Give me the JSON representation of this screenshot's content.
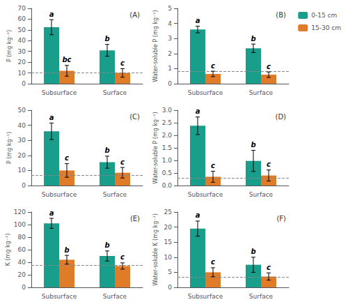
{
  "chart_data": [
    {
      "type": "bar",
      "title": "(A)",
      "ylabel": "P (mg kg⁻¹)",
      "categories": [
        "Subsurface",
        "Surface"
      ],
      "series": [
        {
          "name": "0-15 cm",
          "color": "#1a9e8c",
          "values": [
            52.5,
            31.0
          ],
          "errors": [
            7.0,
            5.5
          ],
          "annotations": [
            "a",
            "b"
          ]
        },
        {
          "name": "15-30 cm",
          "color": "#e07b2a",
          "values": [
            12.0,
            10.0
          ],
          "errors": [
            5.0,
            4.0
          ],
          "annotations": [
            "bc",
            "c"
          ]
        }
      ],
      "reference_line": 10,
      "ylim": [
        0,
        70
      ],
      "yticks": [
        0,
        10,
        20,
        30,
        40,
        50,
        60,
        70
      ],
      "grid": false
    },
    {
      "type": "bar",
      "title": "(B)",
      "ylabel": "Water-soluble P (mg kg⁻¹)",
      "categories": [
        "Subsurface",
        "Surface"
      ],
      "series": [
        {
          "name": "0-15 cm",
          "color": "#1a9e8c",
          "values": [
            3.6,
            2.35
          ],
          "errors": [
            0.22,
            0.28
          ],
          "annotations": [
            "a",
            "b"
          ]
        },
        {
          "name": "15-30 cm",
          "color": "#e07b2a",
          "values": [
            0.65,
            0.6
          ],
          "errors": [
            0.18,
            0.18
          ],
          "annotations": [
            "c",
            "c"
          ]
        }
      ],
      "reference_line": 0.8,
      "ylim": [
        0,
        5
      ],
      "yticks": [
        0,
        1,
        2,
        3,
        4,
        5
      ],
      "grid": false,
      "legend": "upper right"
    },
    {
      "type": "bar",
      "title": "(C)",
      "ylabel": "P (mg kg⁻¹)",
      "categories": [
        "Subsurface",
        "Surface"
      ],
      "series": [
        {
          "name": "0-15 cm",
          "color": "#1a9e8c",
          "values": [
            36.0,
            15.5
          ],
          "errors": [
            5.5,
            4.0
          ],
          "annotations": [
            "a",
            "b"
          ]
        },
        {
          "name": "15-30 cm",
          "color": "#e07b2a",
          "values": [
            10.0,
            8.5
          ],
          "errors": [
            4.5,
            3.5
          ],
          "annotations": [
            "c",
            "c"
          ]
        }
      ],
      "reference_line": 7,
      "ylim": [
        0,
        50
      ],
      "yticks": [
        0,
        10,
        20,
        30,
        40,
        50
      ],
      "grid": false
    },
    {
      "type": "bar",
      "title": "(D)",
      "ylabel": "Water-soluble P (mg kg⁻¹)",
      "categories": [
        "Subsurface",
        "Surface"
      ],
      "series": [
        {
          "name": "0-15 cm",
          "color": "#1a9e8c",
          "values": [
            2.38,
            0.98
          ],
          "errors": [
            0.35,
            0.42
          ],
          "annotations": [
            "a",
            "b"
          ]
        },
        {
          "name": "15-30 cm",
          "color": "#e07b2a",
          "values": [
            0.35,
            0.4
          ],
          "errors": [
            0.22,
            0.22
          ],
          "annotations": [
            "c",
            "c"
          ]
        }
      ],
      "reference_line": 0.3,
      "ylim": [
        0,
        3
      ],
      "yticks": [
        {
          "value": 0,
          "label": "0.0"
        },
        0.5,
        {
          "value": 1,
          "label": "1.0"
        },
        1.5,
        {
          "value": 2,
          "label": "2.0"
        },
        2.5,
        {
          "value": 3,
          "label": "3.0"
        }
      ],
      "grid": false
    },
    {
      "type": "bar",
      "title": "(E)",
      "ylabel": "K (mg kg⁻¹)",
      "categories": [
        "Subsurface",
        "Surface"
      ],
      "series": [
        {
          "name": "0-15 cm",
          "color": "#1a9e8c",
          "values": [
            102.0,
            50.0
          ],
          "errors": [
            8.0,
            8.0
          ],
          "annotations": [
            "a",
            "b"
          ]
        },
        {
          "name": "15-30 cm",
          "color": "#e07b2a",
          "values": [
            44.0,
            34.0
          ],
          "errors": [
            7.0,
            5.0
          ],
          "annotations": [
            "b",
            "c"
          ]
        }
      ],
      "reference_line": 35,
      "ylim": [
        0,
        120
      ],
      "yticks": [
        0,
        20,
        40,
        60,
        80,
        100,
        120
      ],
      "grid": false
    },
    {
      "type": "bar",
      "title": "(F)",
      "ylabel": "Water-soluble K (mg kg⁻¹)",
      "categories": [
        "Subsurface",
        "Surface"
      ],
      "series": [
        {
          "name": "0-15 cm",
          "color": "#1a9e8c",
          "values": [
            19.5,
            7.5
          ],
          "errors": [
            2.5,
            2.5
          ],
          "annotations": [
            "a",
            "b"
          ]
        },
        {
          "name": "15-30 cm",
          "color": "#e07b2a",
          "values": [
            5.0,
            3.6
          ],
          "errors": [
            1.5,
            1.2
          ],
          "annotations": [
            "c",
            "c"
          ]
        }
      ],
      "reference_line": 3.5,
      "ylim": [
        0,
        25
      ],
      "yticks": [
        0,
        5,
        10,
        15,
        20,
        25
      ],
      "grid": false
    }
  ]
}
